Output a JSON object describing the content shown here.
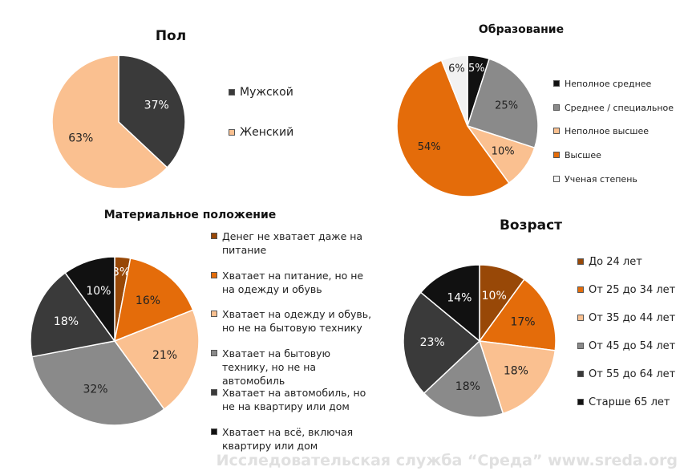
{
  "chart_data": [
    {
      "type": "pie",
      "title": "Пол",
      "categories": [
        "Мужской",
        "Женский"
      ],
      "values": [
        37,
        63
      ],
      "value_labels": [
        "37%",
        "63%"
      ],
      "colors": [
        "#3a3a3a",
        "#fac090"
      ]
    },
    {
      "type": "pie",
      "title": "Образование",
      "categories": [
        "Неполное среднее",
        "Среднее / специальное",
        "Неполное высшее",
        "Высшее",
        "Ученая степень"
      ],
      "values": [
        5,
        25,
        10,
        54,
        6
      ],
      "value_labels": [
        "5%",
        "25%",
        "10%",
        "54%",
        "6%"
      ],
      "colors": [
        "#111111",
        "#8a8a8a",
        "#fac090",
        "#e46c0a",
        "#f2f2f2"
      ]
    },
    {
      "type": "pie",
      "title": "Материальное положение",
      "categories": [
        "Денег не хватает даже на питание",
        "Хватает на питание, но не на одежду и обувь",
        "Хватает на одежду и обувь, но не на бытовую технику",
        "Хватает на бытовую технику, но не на автомобиль",
        "Хватает на автомобиль, но не на квартиру или дом",
        "Хватает на всё, включая квартиру или дом"
      ],
      "values": [
        3,
        16,
        21,
        32,
        18,
        10
      ],
      "value_labels": [
        "3%",
        "16%",
        "21%",
        "32%",
        "18%",
        "10%"
      ],
      "colors": [
        "#984807",
        "#e46c0a",
        "#fac090",
        "#8a8a8a",
        "#3a3a3a",
        "#111111"
      ]
    },
    {
      "type": "pie",
      "title": "Возраст",
      "categories": [
        "До 24 лет",
        "От 25 до 34 лет",
        "От 35 до 44 лет",
        "От 45 до 54 лет",
        "От 55 до 64 лет",
        "Старше 65 лет"
      ],
      "values": [
        10,
        17,
        18,
        18,
        23,
        14
      ],
      "value_labels": [
        "10%",
        "17%",
        "18%",
        "18%",
        "23%",
        "14%"
      ],
      "colors": [
        "#984807",
        "#e46c0a",
        "#fac090",
        "#8a8a8a",
        "#3a3a3a",
        "#111111"
      ]
    }
  ],
  "watermark": "Исследовательская служба “Среда” www.sreda.org"
}
